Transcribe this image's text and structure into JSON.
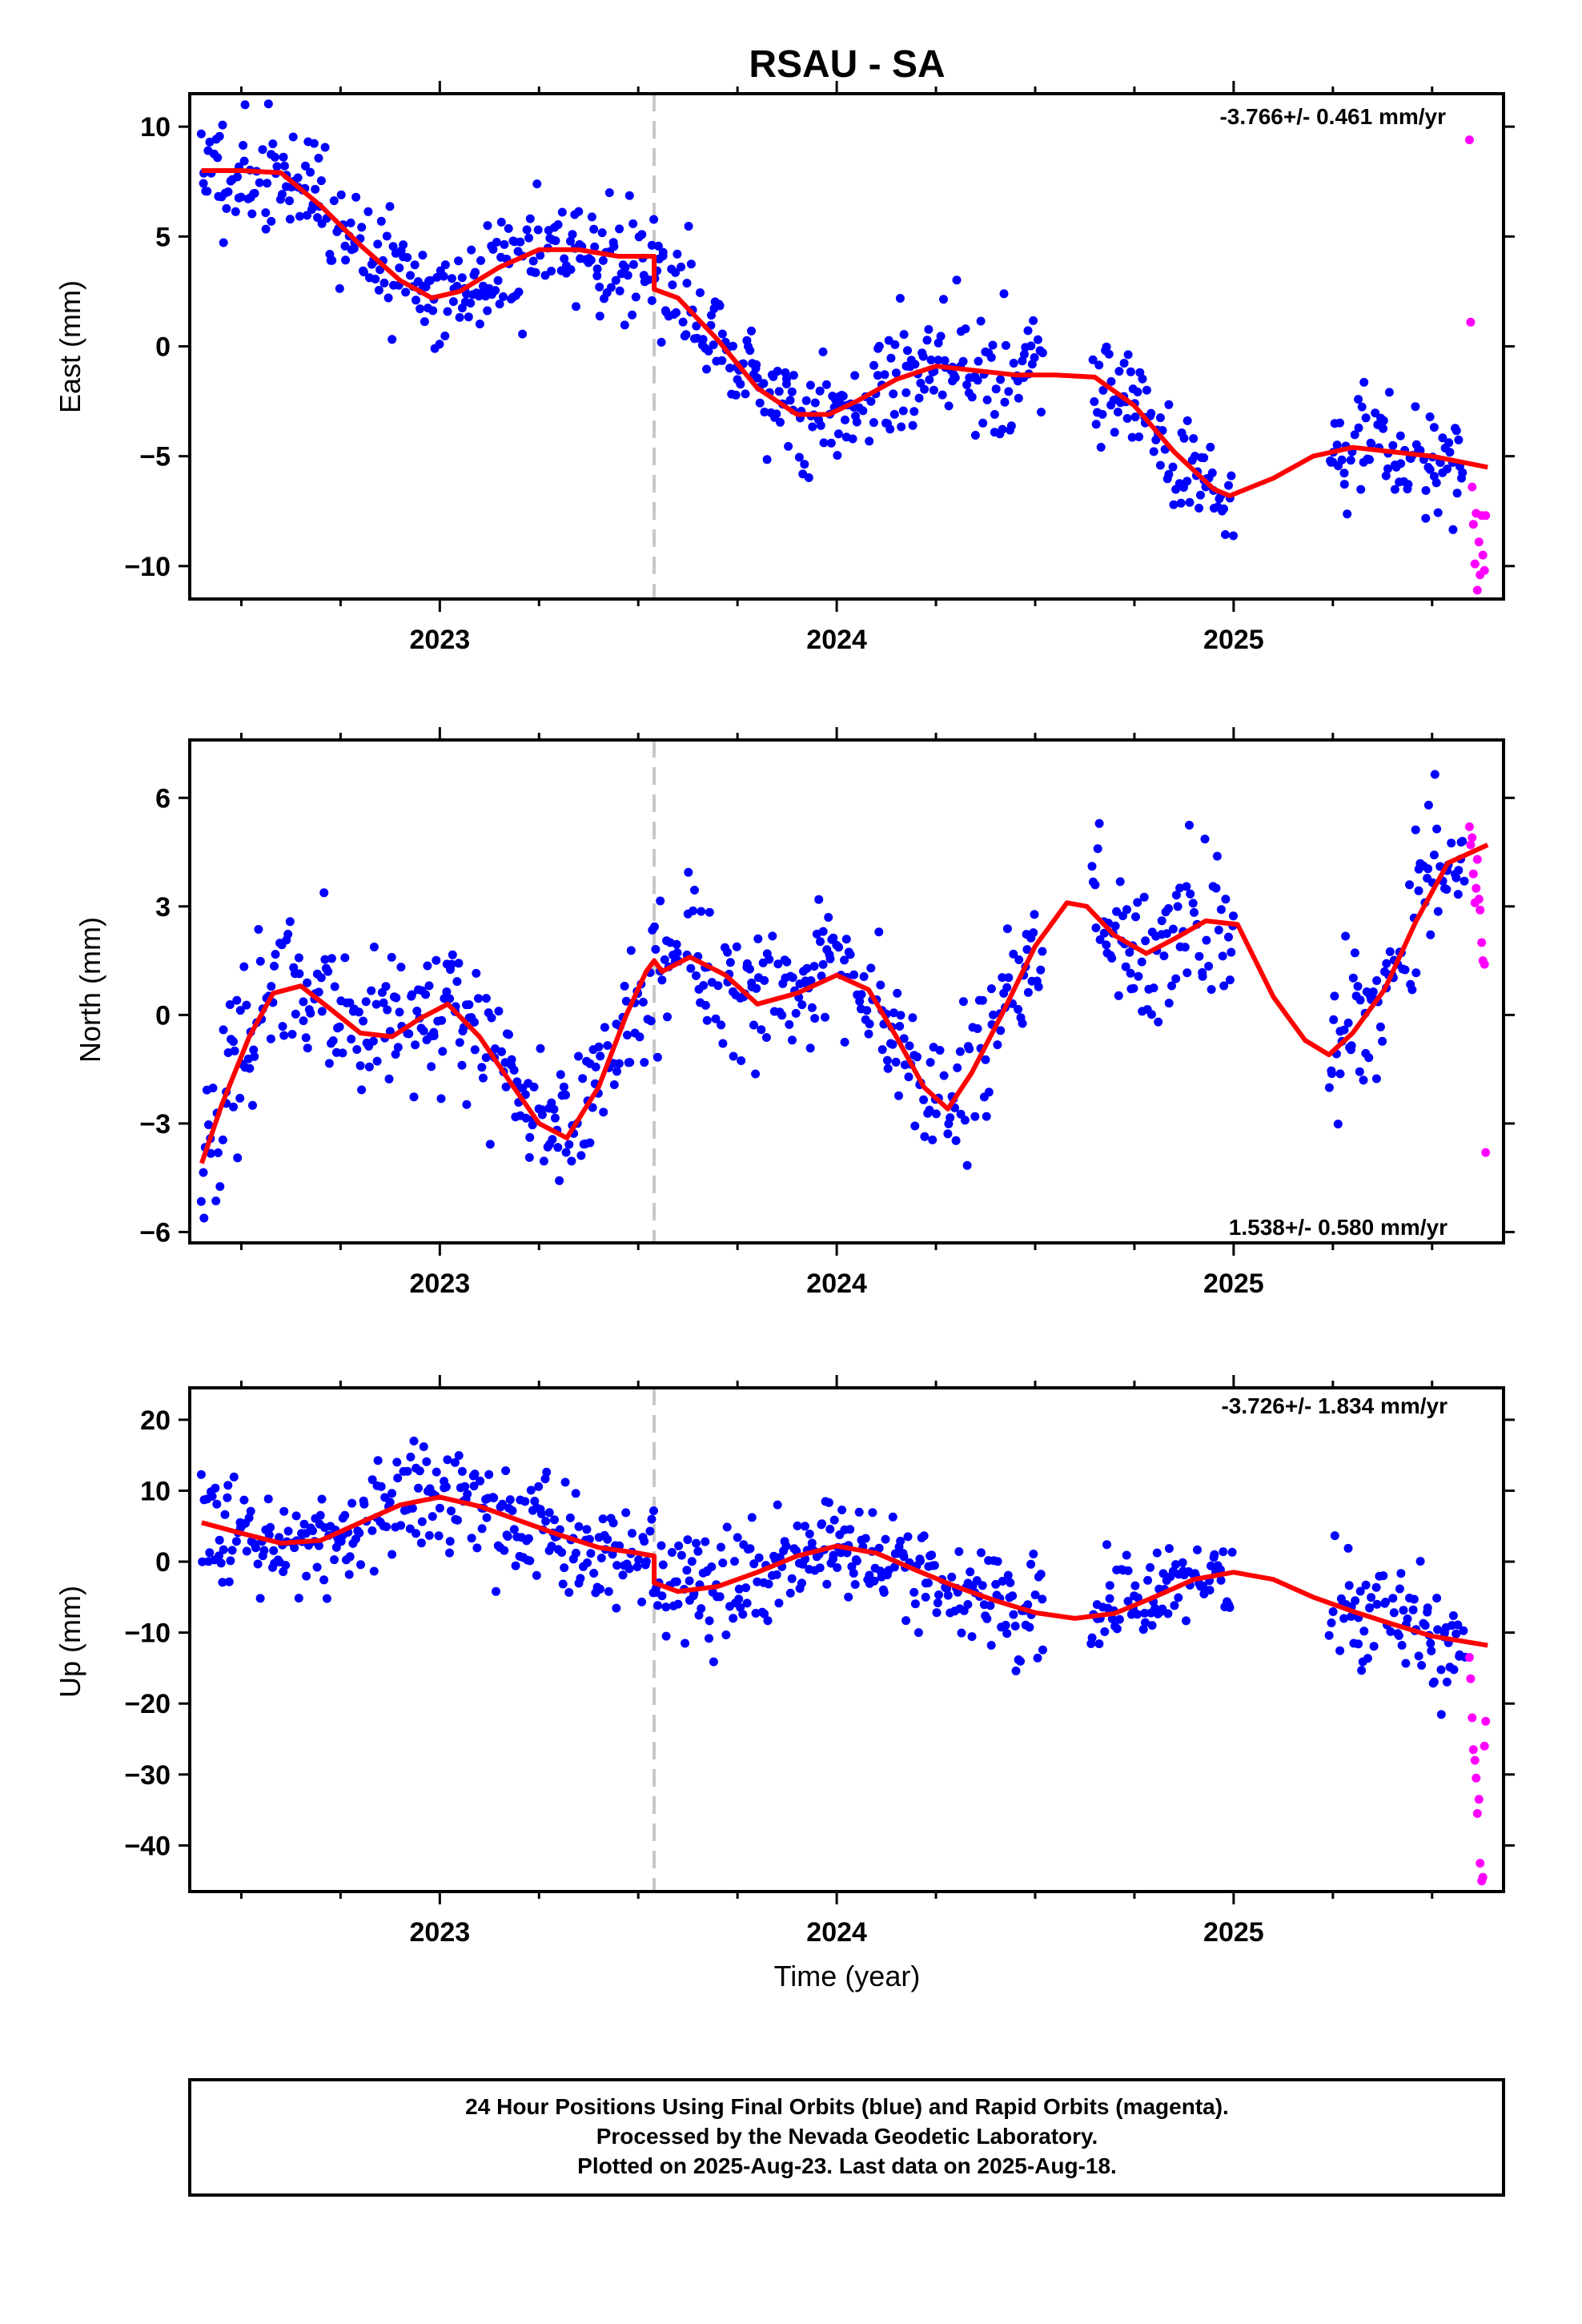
{
  "title": "RSAU - SA",
  "chart_data": [
    {
      "type": "scatter",
      "name": "east",
      "ylabel": "East (mm)",
      "xlabel": "",
      "xlim": [
        2022.37,
        2025.68
      ],
      "ylim": [
        -11.5,
        11.5
      ],
      "yticks": [
        10,
        5,
        0,
        -5,
        -10
      ],
      "yticklabels": [
        "10",
        "5",
        "0",
        "−5",
        "−10"
      ],
      "xticks": [
        2023,
        2024,
        2025
      ],
      "xticklabels": [
        "2023",
        "2024",
        "2025"
      ],
      "rate_text": "-3.766+/- 0.461 mm/yr",
      "rate_position": "top-right",
      "event_line_x": 2023.54,
      "model": {
        "x": [
          2022.4,
          2022.5,
          2022.6,
          2022.7,
          2022.8,
          2022.9,
          2022.98,
          2023.05,
          2023.15,
          2023.25,
          2023.35,
          2023.45,
          2023.54,
          2023.54,
          2023.6,
          2023.7,
          2023.8,
          2023.9,
          2023.98,
          2024.05,
          2024.15,
          2024.25,
          2024.35,
          2024.45,
          2024.55,
          2024.65,
          2024.75,
          2024.85,
          2024.95,
          2024.99,
          2025.1,
          2025.2,
          2025.3,
          2025.4,
          2025.5,
          2025.64
        ],
        "y": [
          8.0,
          8.0,
          7.9,
          6.4,
          4.6,
          3.0,
          2.2,
          2.5,
          3.6,
          4.4,
          4.4,
          4.1,
          4.1,
          2.6,
          2.2,
          0.3,
          -1.9,
          -3.1,
          -3.1,
          -2.5,
          -1.5,
          -0.9,
          -1.1,
          -1.3,
          -1.3,
          -1.4,
          -2.7,
          -4.8,
          -6.5,
          -6.8,
          -6.0,
          -5.0,
          -4.6,
          -4.8,
          -5.0,
          -5.5
        ]
      },
      "final_pattern": {
        "seed": 11,
        "count": 900,
        "spread": 1.3
      },
      "rapid": {
        "x": [
          2025.594,
          2025.597,
          2025.601,
          2025.604,
          2025.608,
          2025.611,
          2025.614,
          2025.618,
          2025.621,
          2025.625,
          2025.628,
          2025.632,
          2025.635
        ],
        "y": [
          9.4,
          1.1,
          -6.4,
          -8.1,
          -9.9,
          -7.6,
          -11.1,
          -8.9,
          -10.4,
          -7.7,
          -9.5,
          -10.2,
          -7.7
        ]
      }
    },
    {
      "type": "scatter",
      "name": "north",
      "ylabel": "North (mm)",
      "xlabel": "",
      "xlim": [
        2022.37,
        2025.68
      ],
      "ylim": [
        -6.3,
        7.6
      ],
      "yticks": [
        6,
        3,
        0,
        -3,
        -6
      ],
      "yticklabels": [
        "6",
        "3",
        "0",
        "−3",
        "−6"
      ],
      "xticks": [
        2023,
        2024,
        2025
      ],
      "xticklabels": [
        "2023",
        "2024",
        "2025"
      ],
      "rate_text": "1.538+/- 0.580 mm/yr",
      "rate_position": "bottom-right",
      "event_line_x": 2023.54,
      "model": {
        "x": [
          2022.4,
          2022.45,
          2022.52,
          2022.58,
          2022.65,
          2022.72,
          2022.8,
          2022.88,
          2022.95,
          2023.02,
          2023.1,
          2023.18,
          2023.25,
          2023.32,
          2023.4,
          2023.47,
          2023.52,
          2023.54,
          2023.56,
          2023.63,
          2023.72,
          2023.8,
          2023.9,
          2024.0,
          2024.08,
          2024.15,
          2024.22,
          2024.28,
          2024.34,
          2024.42,
          2024.5,
          2024.58,
          2024.63,
          2024.7,
          2024.78,
          2024.85,
          2024.93,
          2025.01,
          2025.1,
          2025.18,
          2025.24,
          2025.3,
          2025.38,
          2025.46,
          2025.54,
          2025.64
        ],
        "y": [
          -4.1,
          -2.5,
          -0.6,
          0.6,
          0.8,
          0.2,
          -0.5,
          -0.6,
          -0.1,
          0.3,
          -0.6,
          -1.9,
          -3.0,
          -3.4,
          -2.0,
          0.0,
          1.2,
          1.5,
          1.2,
          1.6,
          1.1,
          0.3,
          0.6,
          1.1,
          0.7,
          -0.6,
          -2.0,
          -2.6,
          -1.6,
          0.1,
          1.9,
          3.1,
          3.0,
          2.2,
          1.7,
          2.1,
          2.6,
          2.5,
          0.5,
          -0.7,
          -1.1,
          -0.5,
          0.7,
          2.6,
          4.2,
          4.7
        ]
      },
      "final_pattern": {
        "seed": 23,
        "count": 900,
        "spread": 1.0
      },
      "rapid": {
        "x": [
          2025.594,
          2025.597,
          2025.601,
          2025.604,
          2025.608,
          2025.611,
          2025.614,
          2025.618,
          2025.621,
          2025.625,
          2025.628,
          2025.632,
          2025.635
        ],
        "y": [
          5.2,
          4.7,
          4.9,
          3.9,
          3.1,
          3.5,
          4.3,
          3.2,
          2.9,
          2.0,
          1.5,
          1.4,
          -3.8
        ]
      }
    },
    {
      "type": "scatter",
      "name": "up",
      "ylabel": "Up (mm)",
      "xlabel": "Time (year)",
      "xlim": [
        2022.37,
        2025.68
      ],
      "ylim": [
        -46.5,
        24.5
      ],
      "yticks": [
        20,
        10,
        0,
        -10,
        -20,
        -30,
        -40
      ],
      "yticklabels": [
        "20",
        "10",
        "0",
        "−10",
        "−20",
        "−30",
        "−40"
      ],
      "xticks": [
        2023,
        2024,
        2025
      ],
      "xticklabels": [
        "2023",
        "2024",
        "2025"
      ],
      "rate_text": "-3.726+/- 1.834 mm/yr",
      "rate_position": "top-right",
      "event_line_x": 2023.54,
      "model": {
        "x": [
          2022.4,
          2022.5,
          2022.6,
          2022.7,
          2022.8,
          2022.9,
          2023.0,
          2023.1,
          2023.2,
          2023.3,
          2023.4,
          2023.5,
          2023.54,
          2023.54,
          2023.6,
          2023.7,
          2023.8,
          2023.9,
          2024.0,
          2024.1,
          2024.2,
          2024.3,
          2024.4,
          2024.5,
          2024.6,
          2024.7,
          2024.8,
          2024.9,
          2025.0,
          2025.1,
          2025.2,
          2025.3,
          2025.4,
          2025.5,
          2025.64
        ],
        "y": [
          5.5,
          4.0,
          2.6,
          3.0,
          5.5,
          8.0,
          9.1,
          7.8,
          5.8,
          3.8,
          2.0,
          1.2,
          0.8,
          -3.0,
          -4.2,
          -3.5,
          -1.5,
          0.8,
          2.2,
          1.2,
          -1.2,
          -3.5,
          -5.5,
          -7.2,
          -8.0,
          -7.3,
          -5.0,
          -2.5,
          -1.5,
          -2.5,
          -5.0,
          -7.0,
          -8.8,
          -10.5,
          -11.8
        ]
      },
      "final_pattern": {
        "seed": 37,
        "count": 900,
        "spread": 3.6
      },
      "rapid": {
        "x": [
          2025.594,
          2025.597,
          2025.601,
          2025.604,
          2025.608,
          2025.611,
          2025.614,
          2025.618,
          2025.621,
          2025.625,
          2025.628,
          2025.632,
          2025.635
        ],
        "y": [
          -13.5,
          -16.5,
          -22.0,
          -26.5,
          -28.0,
          -30.5,
          -35.5,
          -33.5,
          -42.5,
          -45.0,
          -44.5,
          -26.0,
          -22.5
        ]
      }
    }
  ],
  "colors": {
    "final": "#0000ff",
    "rapid": "#ff00ff",
    "model": "#ff0000",
    "event_line": "#c8c8c8",
    "frame": "#000000"
  },
  "footer": {
    "line1": "24 Hour Positions Using Final Orbits (blue) and Rapid Orbits (magenta).",
    "line2": "Processed by the Nevada Geodetic Laboratory.",
    "line3": "Plotted on 2025-Aug-23. Last data on 2025-Aug-18."
  }
}
